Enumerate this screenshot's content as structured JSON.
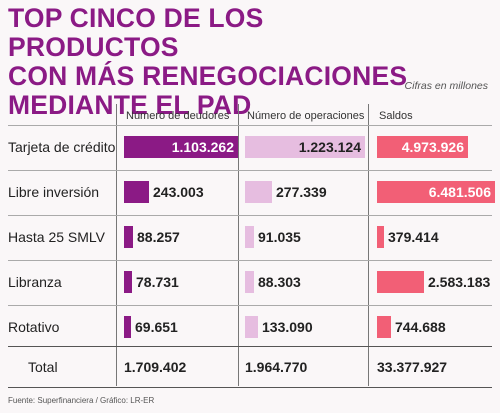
{
  "header": {
    "title_line1": "TOP CINCO DE LOS PRODUCTOS",
    "title_line2": "CON MÁS RENEGOCIACIONES",
    "title_line3": "MEDIANTE EL PAD",
    "note": "Cifras en millones"
  },
  "chart_data": {
    "type": "bar",
    "categories": [
      "Tarjeta de crédito",
      "Libre inversión",
      "Hasta 25 SMLV",
      "Libranza",
      "Rotativo"
    ],
    "series": [
      {
        "name": "Número de deudores",
        "values": [
          1103262,
          243003,
          88257,
          78731,
          69651
        ],
        "labels": [
          "1.103.262",
          "243.003",
          "88.257",
          "78.731",
          "69.651"
        ],
        "color": "#8b1a85",
        "total": "1.709.402"
      },
      {
        "name": "Número de operaciones",
        "values": [
          1223124,
          277339,
          91035,
          88303,
          133090
        ],
        "labels": [
          "1.223.124",
          "277.339",
          "91.035",
          "88.303",
          "133.090"
        ],
        "color": "#e6bde0",
        "total": "1.964.770"
      },
      {
        "name": "Saldos",
        "values": [
          4973926,
          6481506,
          379414,
          2583183,
          744688
        ],
        "labels": [
          "4.973.926",
          "6.481.506",
          "379.414",
          "2.583.183",
          "744.688"
        ],
        "color": "#f25f76",
        "total": "33.377.927"
      }
    ],
    "total_label": "Total"
  },
  "footer": {
    "source": "Fuente: Superfinanciera / Gráfico: LR-ER"
  }
}
